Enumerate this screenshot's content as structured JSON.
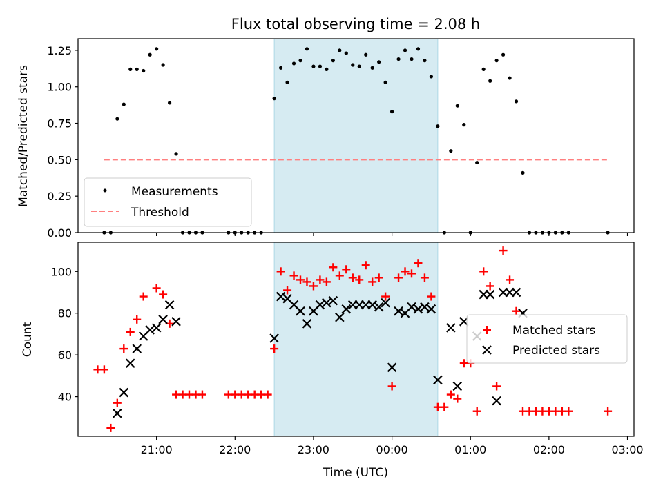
{
  "figure": {
    "title": "Flux total observing time = 2.08 h"
  },
  "colors": {
    "measurement": "#000000",
    "threshold": "#ff7f7f",
    "matched": "#ff0000",
    "predicted": "#000000",
    "highlight": "#add8e6"
  },
  "chart_data": [
    {
      "type": "scatter",
      "panel": "top",
      "title": "Flux total observing time = 2.08 h",
      "xlabel": "",
      "ylabel": "Matched/Predicted stars",
      "xlim": [
        "20:00",
        "03:05"
      ],
      "ylim": [
        0,
        1.33
      ],
      "yticks": [
        "0.00",
        "0.25",
        "0.50",
        "0.75",
        "1.00",
        "1.25"
      ],
      "highlight_span": [
        "22:30",
        "00:35"
      ],
      "legend": {
        "placement": "lower-left",
        "entries": [
          "Measurements",
          "Threshold"
        ]
      },
      "threshold": {
        "name": "Threshold",
        "y": 0.5,
        "x": [
          "20:20",
          "02:45"
        ]
      },
      "series": [
        {
          "name": "Measurements",
          "points": [
            [
              "20:20",
              0.0
            ],
            [
              "20:25",
              0.0
            ],
            [
              "20:30",
              0.78
            ],
            [
              "20:35",
              0.88
            ],
            [
              "20:40",
              1.12
            ],
            [
              "20:45",
              1.12
            ],
            [
              "20:50",
              1.11
            ],
            [
              "20:55",
              1.22
            ],
            [
              "21:00",
              1.26
            ],
            [
              "21:05",
              1.15
            ],
            [
              "21:10",
              0.89
            ],
            [
              "21:15",
              0.54
            ],
            [
              "21:20",
              0.0
            ],
            [
              "21:25",
              0.0
            ],
            [
              "21:30",
              0.0
            ],
            [
              "21:35",
              0.0
            ],
            [
              "21:55",
              0.0
            ],
            [
              "22:00",
              0.0
            ],
            [
              "22:05",
              0.0
            ],
            [
              "22:10",
              0.0
            ],
            [
              "22:15",
              0.0
            ],
            [
              "22:20",
              0.0
            ],
            [
              "22:30",
              0.92
            ],
            [
              "22:35",
              1.13
            ],
            [
              "22:40",
              1.03
            ],
            [
              "22:45",
              1.16
            ],
            [
              "22:50",
              1.18
            ],
            [
              "22:55",
              1.26
            ],
            [
              "23:00",
              1.14
            ],
            [
              "23:05",
              1.14
            ],
            [
              "23:10",
              1.12
            ],
            [
              "23:15",
              1.18
            ],
            [
              "23:20",
              1.25
            ],
            [
              "23:25",
              1.23
            ],
            [
              "23:30",
              1.15
            ],
            [
              "23:35",
              1.14
            ],
            [
              "23:40",
              1.22
            ],
            [
              "23:45",
              1.13
            ],
            [
              "23:50",
              1.17
            ],
            [
              "23:55",
              1.03
            ],
            [
              "00:00",
              0.83
            ],
            [
              "00:05",
              1.19
            ],
            [
              "00:10",
              1.25
            ],
            [
              "00:15",
              1.19
            ],
            [
              "00:20",
              1.26
            ],
            [
              "00:25",
              1.18
            ],
            [
              "00:30",
              1.07
            ],
            [
              "00:35",
              0.73
            ],
            [
              "00:40",
              0.0
            ],
            [
              "00:45",
              0.56
            ],
            [
              "00:50",
              0.87
            ],
            [
              "00:55",
              0.74
            ],
            [
              "01:00",
              0.0
            ],
            [
              "01:05",
              0.48
            ],
            [
              "01:10",
              1.12
            ],
            [
              "01:15",
              1.04
            ],
            [
              "01:20",
              1.18
            ],
            [
              "01:25",
              1.22
            ],
            [
              "01:30",
              1.06
            ],
            [
              "01:35",
              0.9
            ],
            [
              "01:40",
              0.41
            ],
            [
              "01:45",
              0.0
            ],
            [
              "01:50",
              0.0
            ],
            [
              "01:55",
              0.0
            ],
            [
              "02:00",
              0.0
            ],
            [
              "02:05",
              0.0
            ],
            [
              "02:10",
              0.0
            ],
            [
              "02:15",
              0.0
            ],
            [
              "02:45",
              0.0
            ]
          ]
        }
      ]
    },
    {
      "type": "scatter",
      "panel": "bottom",
      "xlabel": "Time (UTC)",
      "ylabel": "Count",
      "xlim": [
        "20:00",
        "03:05"
      ],
      "ylim": [
        21,
        114
      ],
      "xticks": [
        "21:00",
        "22:00",
        "23:00",
        "00:00",
        "01:00",
        "02:00",
        "03:00"
      ],
      "yticks": [
        "40",
        "60",
        "80",
        "100"
      ],
      "highlight_span": [
        "22:30",
        "00:35"
      ],
      "legend": {
        "placement": "center-right",
        "entries": [
          "Matched stars",
          "Predicted stars"
        ]
      },
      "series": [
        {
          "name": "Matched stars",
          "marker": "plus",
          "points": [
            [
              "20:15",
              53
            ],
            [
              "20:20",
              53
            ],
            [
              "20:25",
              25
            ],
            [
              "20:30",
              37
            ],
            [
              "20:35",
              63
            ],
            [
              "20:40",
              71
            ],
            [
              "20:45",
              77
            ],
            [
              "20:50",
              88
            ],
            [
              "21:00",
              92
            ],
            [
              "21:05",
              89
            ],
            [
              "21:10",
              75
            ],
            [
              "21:15",
              41
            ],
            [
              "21:20",
              41
            ],
            [
              "21:25",
              41
            ],
            [
              "21:30",
              41
            ],
            [
              "21:35",
              41
            ],
            [
              "21:55",
              41
            ],
            [
              "22:00",
              41
            ],
            [
              "22:05",
              41
            ],
            [
              "22:10",
              41
            ],
            [
              "22:15",
              41
            ],
            [
              "22:20",
              41
            ],
            [
              "22:25",
              41
            ],
            [
              "22:30",
              63
            ],
            [
              "22:35",
              100
            ],
            [
              "22:40",
              91
            ],
            [
              "22:45",
              98
            ],
            [
              "22:50",
              96
            ],
            [
              "22:55",
              95
            ],
            [
              "23:00",
              93
            ],
            [
              "23:05",
              96
            ],
            [
              "23:10",
              95
            ],
            [
              "23:15",
              102
            ],
            [
              "23:20",
              98
            ],
            [
              "23:25",
              101
            ],
            [
              "23:30",
              97
            ],
            [
              "23:35",
              96
            ],
            [
              "23:40",
              103
            ],
            [
              "23:45",
              95
            ],
            [
              "23:50",
              97
            ],
            [
              "23:55",
              88
            ],
            [
              "00:00",
              45
            ],
            [
              "00:05",
              97
            ],
            [
              "00:10",
              100
            ],
            [
              "00:15",
              99
            ],
            [
              "00:20",
              104
            ],
            [
              "00:25",
              97
            ],
            [
              "00:30",
              88
            ],
            [
              "00:35",
              35
            ],
            [
              "00:40",
              35
            ],
            [
              "00:45",
              41
            ],
            [
              "00:50",
              39
            ],
            [
              "00:55",
              56
            ],
            [
              "01:00",
              56
            ],
            [
              "01:05",
              33
            ],
            [
              "01:10",
              100
            ],
            [
              "01:15",
              93
            ],
            [
              "01:20",
              45
            ],
            [
              "01:25",
              110
            ],
            [
              "01:30",
              96
            ],
            [
              "01:35",
              81
            ],
            [
              "01:40",
              33
            ],
            [
              "01:45",
              33
            ],
            [
              "01:50",
              33
            ],
            [
              "01:55",
              33
            ],
            [
              "02:00",
              33
            ],
            [
              "02:05",
              33
            ],
            [
              "02:10",
              33
            ],
            [
              "02:15",
              33
            ],
            [
              "02:45",
              33
            ]
          ]
        },
        {
          "name": "Predicted stars",
          "marker": "x",
          "points": [
            [
              "20:30",
              32
            ],
            [
              "20:35",
              42
            ],
            [
              "20:40",
              56
            ],
            [
              "20:45",
              63
            ],
            [
              "20:50",
              69
            ],
            [
              "20:55",
              72
            ],
            [
              "21:00",
              73
            ],
            [
              "21:05",
              77
            ],
            [
              "21:10",
              84
            ],
            [
              "21:15",
              76
            ],
            [
              "22:30",
              68
            ],
            [
              "22:35",
              88
            ],
            [
              "22:40",
              87
            ],
            [
              "22:45",
              84
            ],
            [
              "22:50",
              81
            ],
            [
              "22:55",
              75
            ],
            [
              "23:00",
              81
            ],
            [
              "23:05",
              84
            ],
            [
              "23:10",
              85
            ],
            [
              "23:15",
              86
            ],
            [
              "23:20",
              78
            ],
            [
              "23:25",
              82
            ],
            [
              "23:30",
              84
            ],
            [
              "23:35",
              84
            ],
            [
              "23:40",
              84
            ],
            [
              "23:45",
              84
            ],
            [
              "23:50",
              83
            ],
            [
              "23:55",
              85
            ],
            [
              "00:00",
              54
            ],
            [
              "00:05",
              81
            ],
            [
              "00:10",
              80
            ],
            [
              "00:15",
              83
            ],
            [
              "00:20",
              82
            ],
            [
              "00:25",
              83
            ],
            [
              "00:30",
              82
            ],
            [
              "00:35",
              48
            ],
            [
              "00:45",
              73
            ],
            [
              "00:50",
              45
            ],
            [
              "00:55",
              76
            ],
            [
              "01:05",
              69
            ],
            [
              "01:10",
              89
            ],
            [
              "01:15",
              89
            ],
            [
              "01:20",
              38
            ],
            [
              "01:25",
              90
            ],
            [
              "01:30",
              90
            ],
            [
              "01:35",
              90
            ],
            [
              "01:40",
              80
            ]
          ]
        }
      ]
    }
  ]
}
